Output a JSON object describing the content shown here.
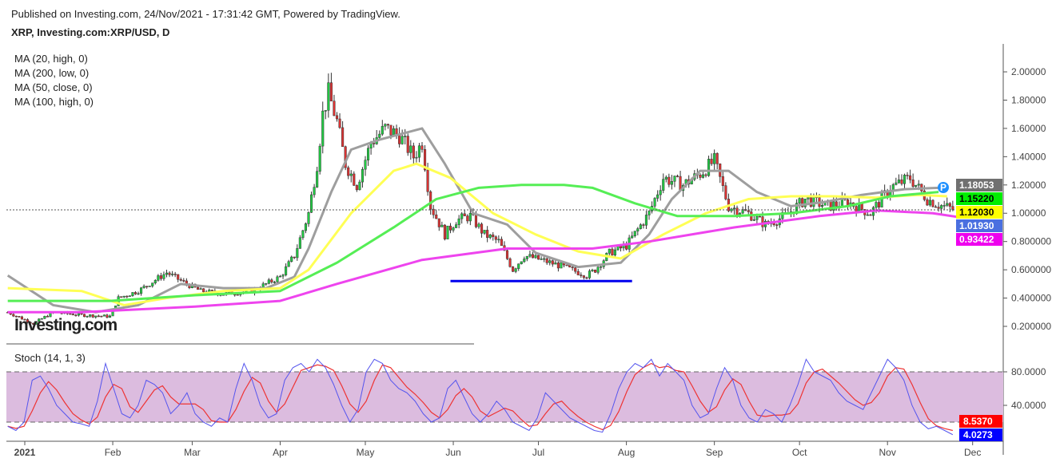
{
  "header": {
    "published": "Published on Investing.com, 24/Nov/2021 - 17:31:42 GMT, Powered by TradingView.",
    "symbol": "XRP, Investing.com:XRP/USD, D"
  },
  "legend": [
    "MA (20, high, 0)",
    "MA (200, low, 0)",
    "MA (50, close, 0)",
    "MA (100, high, 0)"
  ],
  "stoch_label": "Stoch (14, 1, 3)",
  "watermark": "Investing.com",
  "chart_data": [
    {
      "type": "candlestick",
      "title": "XRP/USD Daily",
      "x_unit": "days since 2021-01-01",
      "ylim": [
        0.1,
        2.2
      ],
      "yticks": [
        "0.200000",
        "0.400000",
        "0.600000",
        "0.800000",
        "1.00000",
        "1.20000",
        "1.40000",
        "1.60000",
        "1.80000",
        "2.00000"
      ],
      "xticks": [
        {
          "d": 0,
          "label": "2021"
        },
        {
          "d": 31,
          "label": "Feb"
        },
        {
          "d": 59,
          "label": "Mar"
        },
        {
          "d": 90,
          "label": "Apr"
        },
        {
          "d": 120,
          "label": "May"
        },
        {
          "d": 151,
          "label": "Jun"
        },
        {
          "d": 181,
          "label": "Jul"
        },
        {
          "d": 212,
          "label": "Aug"
        },
        {
          "d": 243,
          "label": "Sep"
        },
        {
          "d": 273,
          "label": "Oct"
        },
        {
          "d": 304,
          "label": "Nov"
        },
        {
          "d": 334,
          "label": "Dec"
        }
      ],
      "close_path": [
        [
          -6,
          0.3
        ],
        [
          3,
          0.22
        ],
        [
          10,
          0.3
        ],
        [
          20,
          0.28
        ],
        [
          30,
          0.27
        ],
        [
          33,
          0.4
        ],
        [
          40,
          0.45
        ],
        [
          50,
          0.58
        ],
        [
          57,
          0.5
        ],
        [
          62,
          0.45
        ],
        [
          70,
          0.43
        ],
        [
          80,
          0.45
        ],
        [
          90,
          0.55
        ],
        [
          95,
          0.7
        ],
        [
          100,
          1.0
        ],
        [
          103,
          1.35
        ],
        [
          105,
          1.7
        ],
        [
          107,
          1.85
        ],
        [
          110,
          1.65
        ],
        [
          113,
          1.35
        ],
        [
          117,
          1.2
        ],
        [
          122,
          1.5
        ],
        [
          127,
          1.6
        ],
        [
          132,
          1.55
        ],
        [
          137,
          1.4
        ],
        [
          140,
          1.5
        ],
        [
          143,
          1.05
        ],
        [
          148,
          0.85
        ],
        [
          152,
          0.95
        ],
        [
          157,
          0.98
        ],
        [
          162,
          0.85
        ],
        [
          167,
          0.8
        ],
        [
          172,
          0.6
        ],
        [
          176,
          0.7
        ],
        [
          182,
          0.67
        ],
        [
          190,
          0.62
        ],
        [
          198,
          0.56
        ],
        [
          201,
          0.6
        ],
        [
          206,
          0.72
        ],
        [
          212,
          0.77
        ],
        [
          220,
          1.0
        ],
        [
          225,
          1.25
        ],
        [
          232,
          1.2
        ],
        [
          238,
          1.28
        ],
        [
          243,
          1.37
        ],
        [
          248,
          1.05
        ],
        [
          255,
          1.0
        ],
        [
          261,
          0.92
        ],
        [
          268,
          0.98
        ],
        [
          275,
          1.1
        ],
        [
          283,
          1.05
        ],
        [
          290,
          1.08
        ],
        [
          298,
          1.0
        ],
        [
          305,
          1.18
        ],
        [
          312,
          1.25
        ],
        [
          318,
          1.1
        ],
        [
          322,
          1.06
        ],
        [
          327,
          1.03
        ]
      ],
      "series": [
        {
          "name": "MA (20, high, 0)",
          "color": "#9e9e9e",
          "points": [
            [
              -6,
              0.56
            ],
            [
              10,
              0.35
            ],
            [
              25,
              0.3
            ],
            [
              40,
              0.35
            ],
            [
              55,
              0.5
            ],
            [
              70,
              0.47
            ],
            [
              85,
              0.47
            ],
            [
              95,
              0.55
            ],
            [
              100,
              0.75
            ],
            [
              108,
              1.15
            ],
            [
              115,
              1.45
            ],
            [
              125,
              1.52
            ],
            [
              140,
              1.6
            ],
            [
              148,
              1.35
            ],
            [
              158,
              1.0
            ],
            [
              170,
              0.92
            ],
            [
              180,
              0.72
            ],
            [
              195,
              0.62
            ],
            [
              210,
              0.65
            ],
            [
              220,
              0.85
            ],
            [
              228,
              1.1
            ],
            [
              238,
              1.3
            ],
            [
              248,
              1.3
            ],
            [
              258,
              1.15
            ],
            [
              270,
              1.05
            ],
            [
              282,
              1.08
            ],
            [
              295,
              1.13
            ],
            [
              310,
              1.17
            ],
            [
              322,
              1.18
            ]
          ]
        },
        {
          "name": "MA (50, close, 0)",
          "color": "#ffff55",
          "points": [
            [
              -6,
              0.47
            ],
            [
              20,
              0.45
            ],
            [
              35,
              0.35
            ],
            [
              50,
              0.4
            ],
            [
              70,
              0.45
            ],
            [
              90,
              0.47
            ],
            [
              100,
              0.6
            ],
            [
              115,
              1.0
            ],
            [
              130,
              1.3
            ],
            [
              138,
              1.35
            ],
            [
              150,
              1.25
            ],
            [
              165,
              1.0
            ],
            [
              180,
              0.85
            ],
            [
              195,
              0.73
            ],
            [
              210,
              0.68
            ],
            [
              225,
              0.85
            ],
            [
              240,
              1.0
            ],
            [
              255,
              1.1
            ],
            [
              270,
              1.12
            ],
            [
              285,
              1.12
            ],
            [
              300,
              1.11
            ],
            [
              315,
              1.13
            ],
            [
              325,
              1.12
            ]
          ]
        },
        {
          "name": "MA (100, high, 0)",
          "color": "#55ee55",
          "points": [
            [
              -6,
              0.38
            ],
            [
              30,
              0.38
            ],
            [
              60,
              0.42
            ],
            [
              90,
              0.45
            ],
            [
              110,
              0.65
            ],
            [
              130,
              0.9
            ],
            [
              145,
              1.1
            ],
            [
              160,
              1.18
            ],
            [
              175,
              1.2
            ],
            [
              190,
              1.2
            ],
            [
              200,
              1.18
            ],
            [
              215,
              1.07
            ],
            [
              230,
              0.98
            ],
            [
              250,
              0.98
            ],
            [
              270,
              1.0
            ],
            [
              290,
              1.05
            ],
            [
              305,
              1.12
            ],
            [
              322,
              1.15
            ]
          ]
        },
        {
          "name": "MA (200, low, 0)",
          "color": "#ee44ee",
          "points": [
            [
              -6,
              0.3
            ],
            [
              20,
              0.3
            ],
            [
              60,
              0.34
            ],
            [
              90,
              0.38
            ],
            [
              110,
              0.5
            ],
            [
              140,
              0.67
            ],
            [
              170,
              0.75
            ],
            [
              200,
              0.75
            ],
            [
              220,
              0.8
            ],
            [
              250,
              0.9
            ],
            [
              280,
              0.98
            ],
            [
              300,
              1.02
            ],
            [
              320,
              1.0
            ],
            [
              330,
              0.97
            ]
          ]
        }
      ],
      "support_line": {
        "from": 150,
        "to": 214,
        "price": 0.52,
        "color": "#0000ee"
      },
      "last_price": 1.02,
      "price_tags": [
        {
          "value": "1.18053",
          "bg": "#707070",
          "fg": "#fff"
        },
        {
          "value": "1.15220",
          "bg": "#00ee00",
          "fg": "#000"
        },
        {
          "value": "1.12030",
          "bg": "#ffff00",
          "fg": "#000"
        },
        {
          "value": "1.01930",
          "bg": "#4a6fe0",
          "fg": "#fff"
        },
        {
          "value": "0.93422",
          "bg": "#ee00ee",
          "fg": "#fff"
        }
      ]
    },
    {
      "type": "line",
      "title": "Stoch (14, 1, 3)",
      "ylim": [
        -5,
        100
      ],
      "bands": [
        20,
        80
      ],
      "yticks": [
        "40.0000",
        "80.0000"
      ],
      "k": [
        15,
        10,
        20,
        70,
        75,
        60,
        40,
        30,
        20,
        18,
        15,
        45,
        90,
        60,
        30,
        25,
        40,
        70,
        65,
        55,
        30,
        40,
        55,
        30,
        20,
        15,
        25,
        20,
        60,
        90,
        70,
        40,
        25,
        30,
        70,
        85,
        90,
        80,
        95,
        85,
        65,
        40,
        20,
        35,
        80,
        95,
        90,
        70,
        60,
        55,
        45,
        30,
        20,
        25,
        60,
        70,
        50,
        30,
        20,
        30,
        45,
        35,
        20,
        15,
        10,
        25,
        55,
        45,
        35,
        25,
        20,
        15,
        10,
        8,
        30,
        60,
        80,
        90,
        85,
        95,
        75,
        90,
        80,
        70,
        40,
        25,
        30,
        60,
        85,
        70,
        40,
        25,
        20,
        35,
        30,
        20,
        40,
        65,
        95,
        80,
        75,
        70,
        55,
        45,
        40,
        35,
        55,
        75,
        95,
        85,
        70,
        40,
        20,
        12,
        15,
        10,
        5
      ],
      "d_color": "#ee3333",
      "k_color": "#5555ee",
      "tags": [
        {
          "value": "8.5370",
          "bg": "#ff0000"
        },
        {
          "value": "4.0273",
          "bg": "#0000ff"
        }
      ]
    }
  ]
}
